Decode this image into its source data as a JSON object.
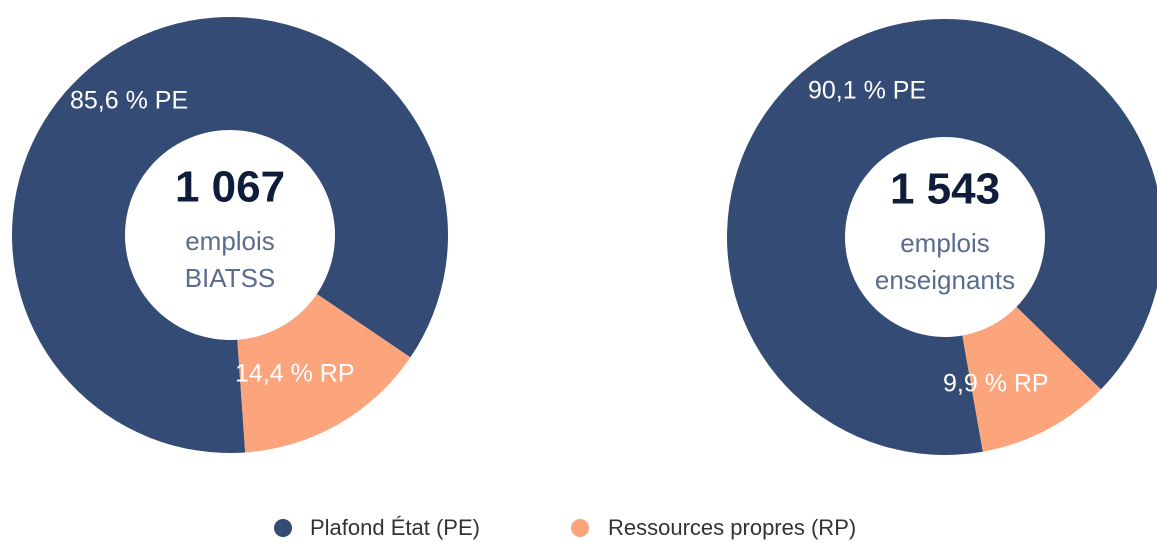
{
  "legend": [
    {
      "name": "Plafond État (PE)",
      "color": "#344b75"
    },
    {
      "name": "Ressources propres (RP)",
      "color": "#fca47c"
    }
  ],
  "chart_data": [
    {
      "type": "pie",
      "values": [
        85.6,
        14.4
      ],
      "value_labels": [
        "85,6 % PE",
        "14,4 % RP"
      ],
      "total": {
        "value": 1067,
        "label": "1 067"
      },
      "center_text": [
        "emplois",
        "BIATSS"
      ]
    },
    {
      "type": "pie",
      "values": [
        90.1,
        9.9
      ],
      "value_labels": [
        "90,1 % PE",
        "9,9 % RP"
      ],
      "total": {
        "value": 1543,
        "label": "1 543"
      },
      "center_text": [
        "emplois",
        "enseignants"
      ]
    }
  ]
}
